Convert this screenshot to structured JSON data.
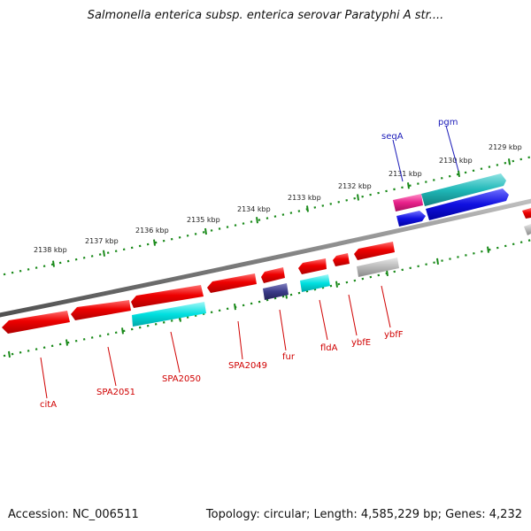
{
  "title": "Salmonella enterica subsp. enterica serovar Paratyphi A str....",
  "footer": {
    "accession": "Accession: NC_006511",
    "summary": "Topology: circular; Length: 4,585,229 bp; Genes: 4,232"
  },
  "scale_labels": [
    "2138 kbp",
    "2137 kbp",
    "2136 kbp",
    "2135 kbp",
    "2134 kbp",
    "2133 kbp",
    "2132 kbp",
    "2131 kbp",
    "2130 kbp",
    "2129 kbp"
  ],
  "gene_labels_bottom": [
    "citA",
    "SPA2051",
    "SPA2050",
    "SPA2049",
    "fur",
    "fldA",
    "ybfE",
    "ybfF"
  ],
  "gene_labels_top": [
    "seqA",
    "pgm"
  ],
  "colors": {
    "red": "#ee0000",
    "cyan": "#00d8d8",
    "teal": "#1fb8b8",
    "blue": "#1010e0",
    "magenta": "#e8208a",
    "navy": "#3a3a88",
    "gray": "#b8b8b8",
    "backbone": "#888888",
    "ticks": "#1a8a1a"
  }
}
